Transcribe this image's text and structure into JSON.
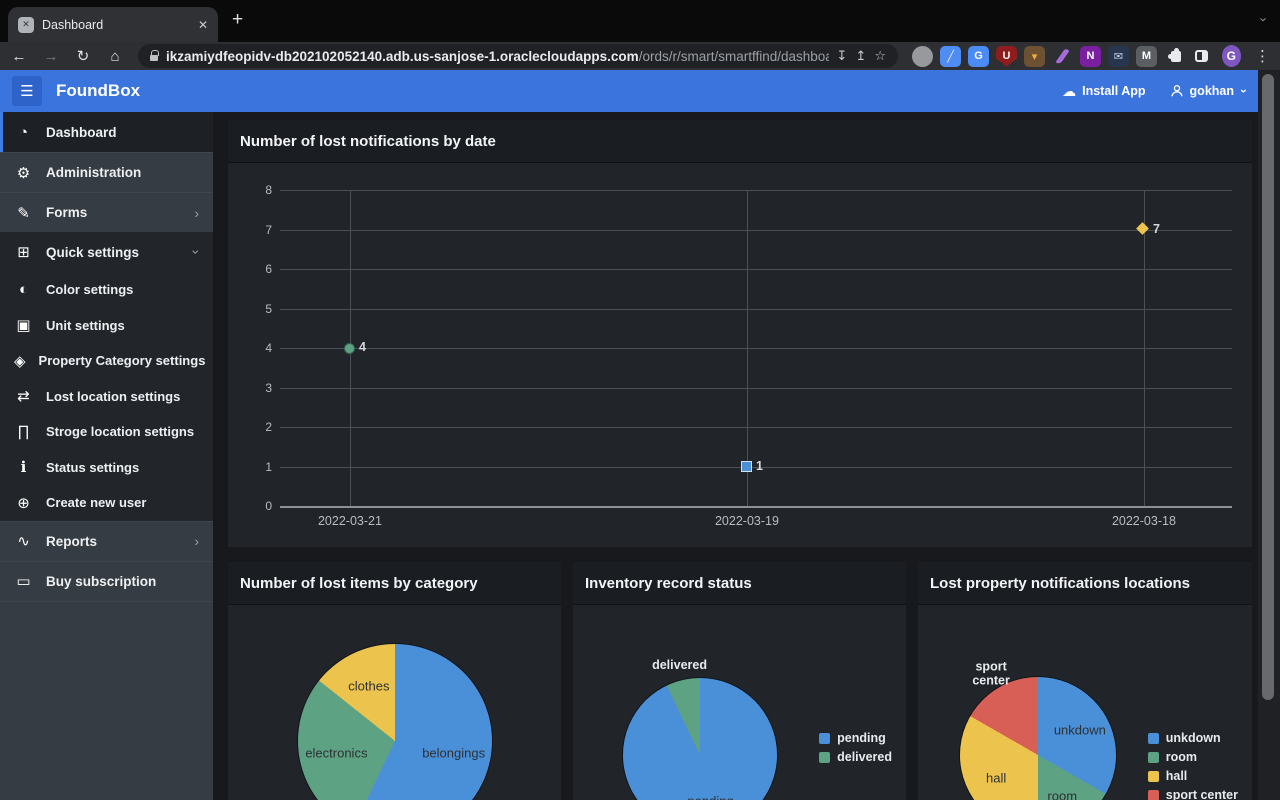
{
  "browser": {
    "tab_title": "Dashboard",
    "url_domain": "ikzamiydfeopidv-db202102052140.adb.us-sanjose-1.oraclecloudapps.com",
    "url_path": "/ords/r/smart/smartffind/dashboar...",
    "avatar_letter": "G",
    "extensions": [
      {
        "name": "molecule-extension",
        "shape": "circle",
        "bg": "#97999c",
        "glyph": "",
        "fg": "#ffffff"
      },
      {
        "name": "editor-pen-extension",
        "shape": "square",
        "bg": "#4f8df5",
        "glyph": "╱",
        "fg": "#e8f0fe"
      },
      {
        "name": "translate-extension",
        "shape": "square",
        "bg": "#4b8bf5",
        "glyph": "G",
        "fg": "#ffffff"
      },
      {
        "name": "ublock-extension",
        "shape": "shield",
        "bg": "#8f1d1d",
        "glyph": "U",
        "fg": "#f1f1f1"
      },
      {
        "name": "photos-extension",
        "shape": "square",
        "bg": "#6e5033",
        "glyph": "▾",
        "fg": "#f3b13c"
      },
      {
        "name": "feather-extension",
        "shape": "feather",
        "bg": "transparent",
        "glyph": "",
        "fg": "#a66bd8"
      },
      {
        "name": "onenote-extension",
        "shape": "square",
        "bg": "#7a1fa2",
        "glyph": "N",
        "fg": "#ffffff"
      },
      {
        "name": "mail-extension",
        "shape": "square",
        "bg": "#27354f",
        "glyph": "✉",
        "fg": "#cdd6e8"
      },
      {
        "name": "m-extension",
        "shape": "square",
        "bg": "#5b5e62",
        "glyph": "M",
        "fg": "#ffffff"
      }
    ]
  },
  "icons": {
    "hamburger": "☰",
    "back": "←",
    "forward": "→",
    "reload": "↻",
    "home": "⌂",
    "star": "☆",
    "share": "↥",
    "page_install": "↧",
    "plus": "+",
    "close": "✕",
    "dots": "⋮",
    "chevron_right": "›",
    "cloud": "☁",
    "gauge": "◔",
    "admin_user": "⚙",
    "form_edit": "✎",
    "clipboard_plus": "⊞",
    "contrast": "◐",
    "unit_box": "▣",
    "category_cube": "◈",
    "swap_arrows": "⇄",
    "bank": "∏",
    "info": "ℹ",
    "user_plus": "⊕",
    "report_wave": "∿",
    "card": "▭",
    "favicon_glyph": "✕"
  },
  "header": {
    "app_name": "FoundBox",
    "install_app_label": "Install App",
    "user_name": "gokhan"
  },
  "sidebar": {
    "items": [
      {
        "label": "Dashboard",
        "icon": "gauge",
        "variant": "dark",
        "active": true,
        "sub": false,
        "trailing": null
      },
      {
        "label": "Administration",
        "icon": "admin_user",
        "variant": "light",
        "active": false,
        "sub": false,
        "trailing": null
      },
      {
        "label": "Forms",
        "icon": "form_edit",
        "variant": "light",
        "active": false,
        "sub": false,
        "trailing": "chevron-right"
      },
      {
        "label": "Quick settings",
        "icon": "clipboard_plus",
        "variant": "dark",
        "active": false,
        "sub": false,
        "trailing": "chevron-down"
      },
      {
        "label": "Color settings",
        "icon": "contrast",
        "variant": "dark",
        "active": false,
        "sub": true,
        "trailing": null
      },
      {
        "label": "Unit settings",
        "icon": "unit_box",
        "variant": "dark",
        "active": false,
        "sub": true,
        "trailing": null
      },
      {
        "label": "Property Category settings",
        "icon": "category_cube",
        "variant": "dark",
        "active": false,
        "sub": true,
        "trailing": null
      },
      {
        "label": "Lost location settings",
        "icon": "swap_arrows",
        "variant": "dark",
        "active": false,
        "sub": true,
        "trailing": null
      },
      {
        "label": "Stroge location settigns",
        "icon": "bank",
        "variant": "dark",
        "active": false,
        "sub": true,
        "trailing": null
      },
      {
        "label": "Status settings",
        "icon": "info",
        "variant": "dark",
        "active": false,
        "sub": true,
        "trailing": null
      },
      {
        "label": "Create new user",
        "icon": "user_plus",
        "variant": "dark",
        "active": false,
        "sub": true,
        "trailing": null
      },
      {
        "label": "Reports",
        "icon": "report_wave",
        "variant": "light",
        "active": false,
        "sub": false,
        "trailing": "chevron-right"
      },
      {
        "label": "Buy subscription",
        "icon": "card",
        "variant": "light",
        "active": false,
        "sub": false,
        "trailing": null
      }
    ]
  },
  "chart_data": [
    {
      "type": "scatter",
      "title": "Number of lost notifications by date",
      "categories": [
        "2022-03-21",
        "2022-03-19",
        "2022-03-18"
      ],
      "values": [
        4,
        1,
        7
      ],
      "point_labels": [
        "4",
        "1",
        "7"
      ],
      "point_shapes": [
        "circle",
        "square",
        "diamond"
      ],
      "point_colors": [
        "#5da283",
        "#4a90d9",
        "#ecc44d"
      ],
      "xlabel": "",
      "ylabel": "",
      "ylim": [
        0,
        8
      ],
      "ytick_step": 1,
      "grid": true,
      "legend": false
    },
    {
      "type": "pie",
      "title": "Number of lost items by category",
      "slices": [
        {
          "label": "belongings",
          "pct": 57.1,
          "color": "#4a90d9",
          "label_placement": "inside"
        },
        {
          "label": "electronics",
          "pct": 28.6,
          "color": "#5da283",
          "label_placement": "inside"
        },
        {
          "label": "clothes",
          "pct": 14.3,
          "color": "#ecc44d",
          "label_placement": "inside"
        }
      ],
      "legend": false
    },
    {
      "type": "pie",
      "title": "Inventory record status",
      "slices": [
        {
          "label": "pending",
          "pct": 92.9,
          "color": "#4a90d9",
          "label_placement": "inside"
        },
        {
          "label": "delivered",
          "pct": 7.1,
          "color": "#5da283",
          "label_placement": "outside"
        }
      ],
      "legend": true
    },
    {
      "type": "pie",
      "title": "Lost property notifications locations",
      "slices": [
        {
          "label": "unkdown",
          "pct": 33.3,
          "color": "#4a90d9",
          "label_placement": "inside"
        },
        {
          "label": "room",
          "pct": 16.7,
          "color": "#5da283",
          "label_placement": "inside"
        },
        {
          "label": "hall",
          "pct": 33.3,
          "color": "#ecc44d",
          "label_placement": "inside"
        },
        {
          "label": "sport center",
          "pct": 16.7,
          "color": "#d85f55",
          "label_placement": "outside"
        }
      ],
      "legend": true
    }
  ]
}
